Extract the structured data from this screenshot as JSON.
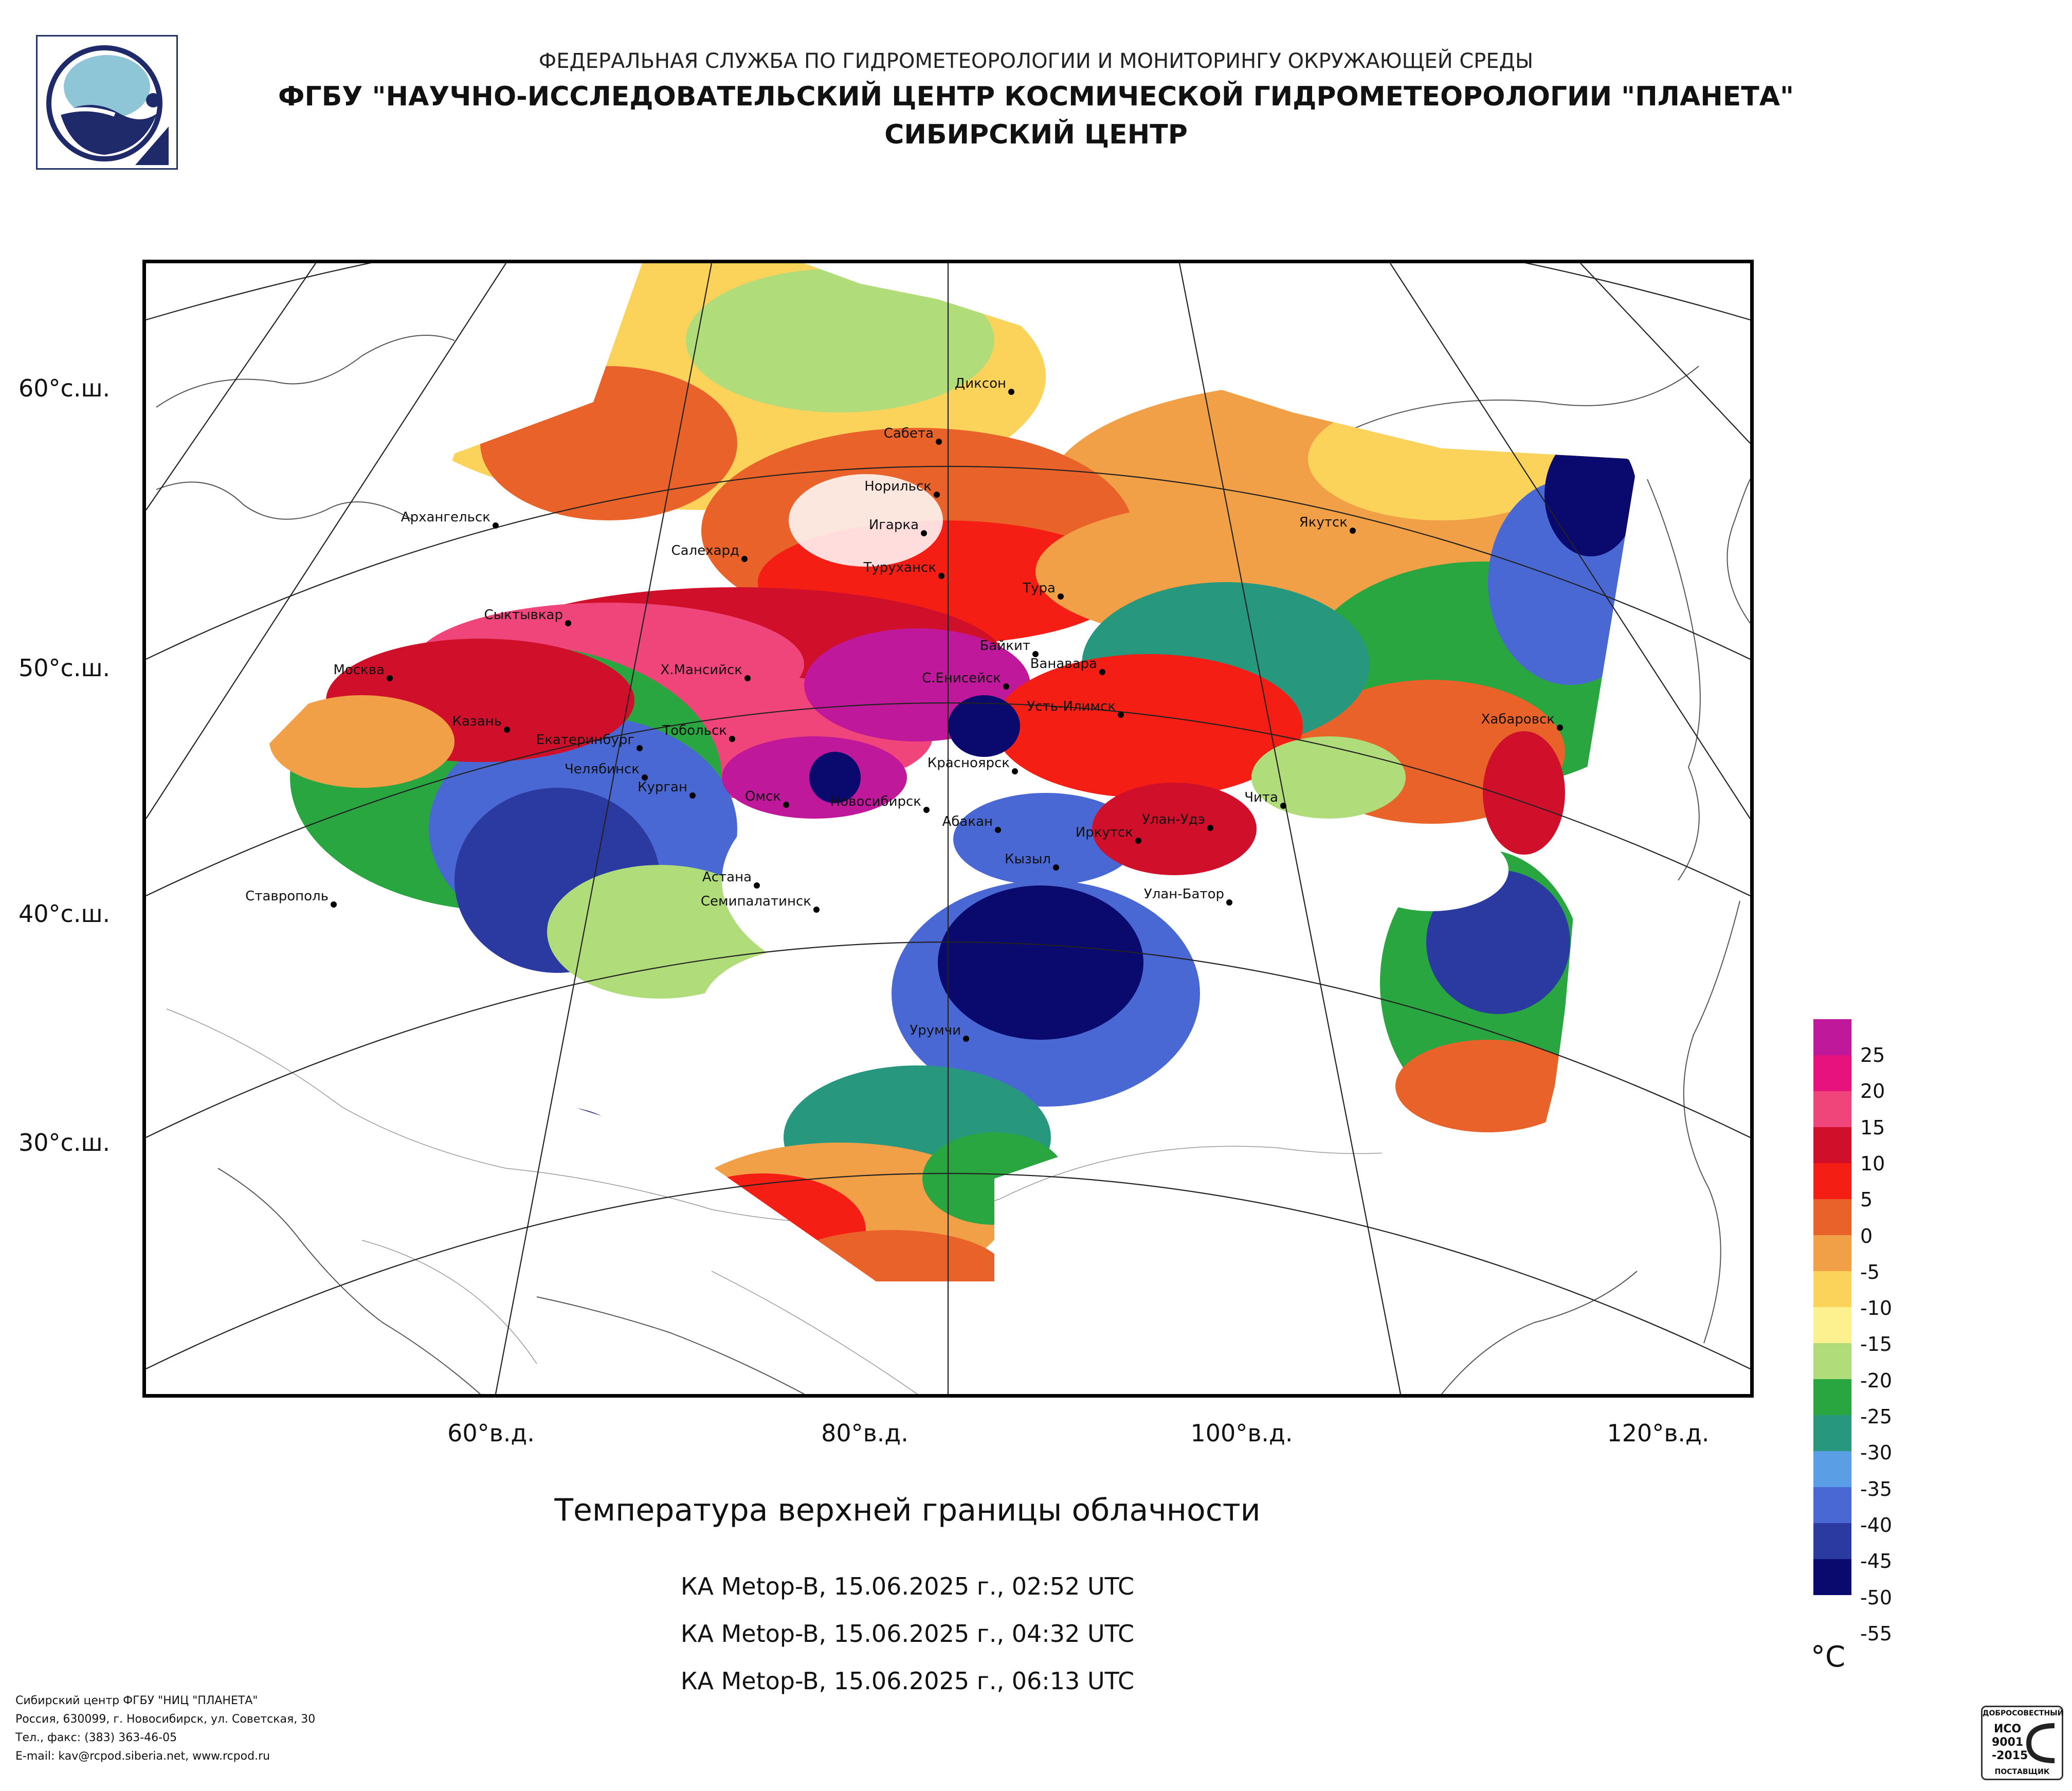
{
  "header": {
    "line1": "ФЕДЕРАЛЬНАЯ СЛУЖБА ПО ГИДРОМЕТЕОРОЛОГИИ И МОНИТОРИНГУ ОКРУЖАЮЩЕЙ СРЕДЫ",
    "line2": "ФГБУ \"НАУЧНО-ИССЛЕДОВАТЕЛЬСКИЙ ЦЕНТР КОСМИЧЕСКОЙ ГИДРОМЕТЕОРОЛОГИИ \"ПЛАНЕТА\"",
    "line3": "СИБИРСКИЙ ЦЕНТР"
  },
  "map": {
    "lat_labels": [
      "60°с.ш.",
      "50°с.ш.",
      "40°с.ш.",
      "30°с.ш."
    ],
    "lon_labels": [
      "60°в.д.",
      "80°в.д.",
      "100°в.д.",
      "120°в.д."
    ],
    "cities": [
      "Диксон",
      "Сабета",
      "Норильск",
      "Игарка",
      "Архангельск",
      "Салехард",
      "Туруханск",
      "Тура",
      "Якутск",
      "Сыктывкар",
      "Байкит",
      "Ванавара",
      "Москва",
      "Х.Мансийск",
      "С.Енисейск",
      "Усть-Илимск",
      "Хабаровск",
      "Казань",
      "Екатеринбург",
      "Тобольск",
      "Челябинск",
      "Курган",
      "Красноярск",
      "Омск",
      "Новосибирск",
      "Чита",
      "Абакан",
      "Улан-Удэ",
      "Иркутск",
      "Кызыл",
      "Ставрополь",
      "Астана",
      "Семипалатинск",
      "Улан-Батор",
      "Урумчи"
    ]
  },
  "product": {
    "title": "Температура верхней границы облачности",
    "passes": [
      "КА Metop-B, 15.06.2025 г., 02:52 UTC",
      "КА Metop-B, 15.06.2025 г., 04:32 UTC",
      "КА Metop-B, 15.06.2025 г., 06:13 UTC"
    ]
  },
  "legend": {
    "unit": "°C",
    "values": [
      "25",
      "20",
      "15",
      "10",
      "5",
      "0",
      "-5",
      "-10",
      "-15",
      "-20",
      "-25",
      "-30",
      "-35",
      "-40",
      "-45",
      "-50",
      "-55"
    ],
    "colors": [
      "#c0189a",
      "#e8127e",
      "#f0457a",
      "#d0102a",
      "#f51e14",
      "#e8622a",
      "#f2a048",
      "#fbd25a",
      "#fdf08e",
      "#b0dc7a",
      "#2aa640",
      "#27987e",
      "#5a9ee6",
      "#4a68d4",
      "#2a3aa0",
      "#0a0a6e"
    ]
  },
  "footer": {
    "lines": [
      "Сибирский центр ФГБУ \"НИЦ \"ПЛАНЕТА\"",
      "Россия, 630099, г. Новосибирск, ул. Советская, 30",
      "Тел., факс: (383) 363-46-05",
      "E-mail: kav@rcpod.siberia.net, www.rcpod.ru"
    ]
  },
  "iso_badge": {
    "top_text": "ДОБРОСОВЕСТНЫЙ",
    "line1": "ИСО",
    "line2": "9001",
    "line3": "-2015",
    "bottom_text": "ПОСТАВЩИК"
  }
}
